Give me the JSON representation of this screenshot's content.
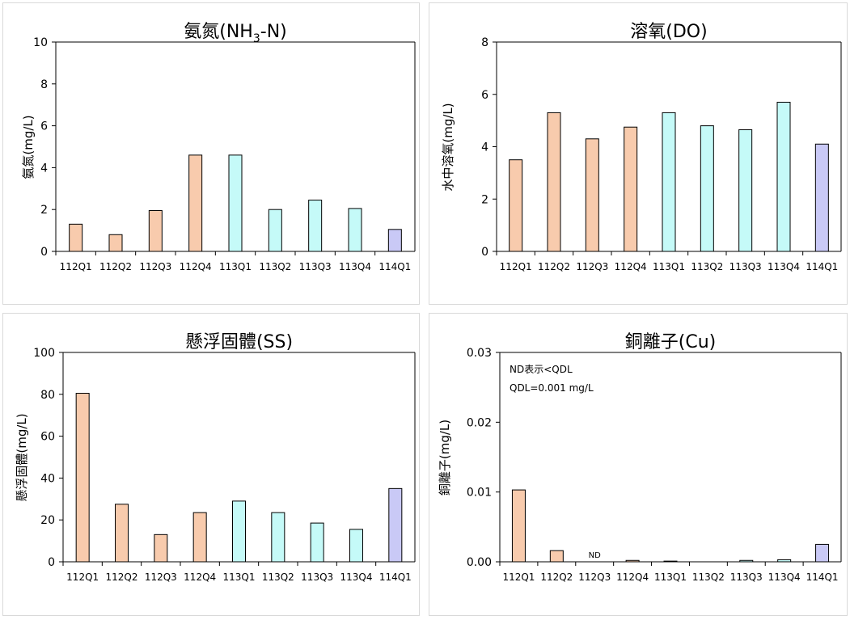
{
  "colors": {
    "y112": "#F8CBAD",
    "y113": "#C5FAF8",
    "y114": "#C9C9F6",
    "axis": "#000000"
  },
  "chart_data": [
    {
      "type": "bar",
      "title": "氨氮(NH3-N)",
      "title_main": "氨氮(NH",
      "title_sub": "3",
      "title_tail": "-N)",
      "ylabel": "氨氮(mg/L)",
      "categories": [
        "112Q1",
        "112Q2",
        "112Q3",
        "112Q4",
        "113Q1",
        "113Q2",
        "113Q3",
        "113Q4",
        "114Q1"
      ],
      "values": [
        1.3,
        0.8,
        1.95,
        4.6,
        4.6,
        2.0,
        2.45,
        2.05,
        1.05
      ],
      "ylim": [
        0,
        10
      ],
      "yticks": [
        "0",
        "2",
        "4",
        "6",
        "8",
        "10"
      ],
      "grid": false
    },
    {
      "type": "bar",
      "title": "溶氧(DO)",
      "ylabel": "水中溶氧(mg/L)",
      "categories": [
        "112Q1",
        "112Q2",
        "112Q3",
        "112Q4",
        "113Q1",
        "113Q2",
        "113Q3",
        "113Q4",
        "114Q1"
      ],
      "values": [
        3.5,
        5.3,
        4.3,
        4.75,
        5.3,
        4.8,
        4.65,
        5.7,
        4.1
      ],
      "ylim": [
        0,
        8
      ],
      "yticks": [
        "0",
        "2",
        "4",
        "6",
        "8"
      ],
      "grid": false
    },
    {
      "type": "bar",
      "title": "懸浮固體(SS)",
      "ylabel": "懸浮固體(mg/L)",
      "categories": [
        "112Q1",
        "112Q2",
        "112Q3",
        "112Q4",
        "113Q1",
        "113Q2",
        "113Q3",
        "113Q4",
        "114Q1"
      ],
      "values": [
        80.5,
        27.5,
        13,
        23.5,
        29,
        23.5,
        18.5,
        15.5,
        35
      ],
      "ylim": [
        0,
        100
      ],
      "yticks": [
        "0",
        "20",
        "40",
        "60",
        "80",
        "100"
      ],
      "grid": false
    },
    {
      "type": "bar",
      "title": "銅離子(Cu)",
      "ylabel": "銅離子(mg/L)",
      "categories": [
        "112Q1",
        "112Q2",
        "112Q3",
        "112Q4",
        "113Q1",
        "113Q2",
        "113Q3",
        "113Q4",
        "114Q1"
      ],
      "values": [
        0.0103,
        0.0016,
        0,
        0.0002,
        0.0001,
        0,
        0.0002,
        0.0003,
        0.0025
      ],
      "ylim": [
        0,
        0.03
      ],
      "yticks": [
        "0.00",
        "0.01",
        "0.02",
        "0.03"
      ],
      "grid": false,
      "annotations": [
        "ND表示<QDL",
        "QDL=0.001 mg/L"
      ],
      "data_labels": [
        {
          "category": "112Q3",
          "text": "ND"
        }
      ]
    }
  ]
}
